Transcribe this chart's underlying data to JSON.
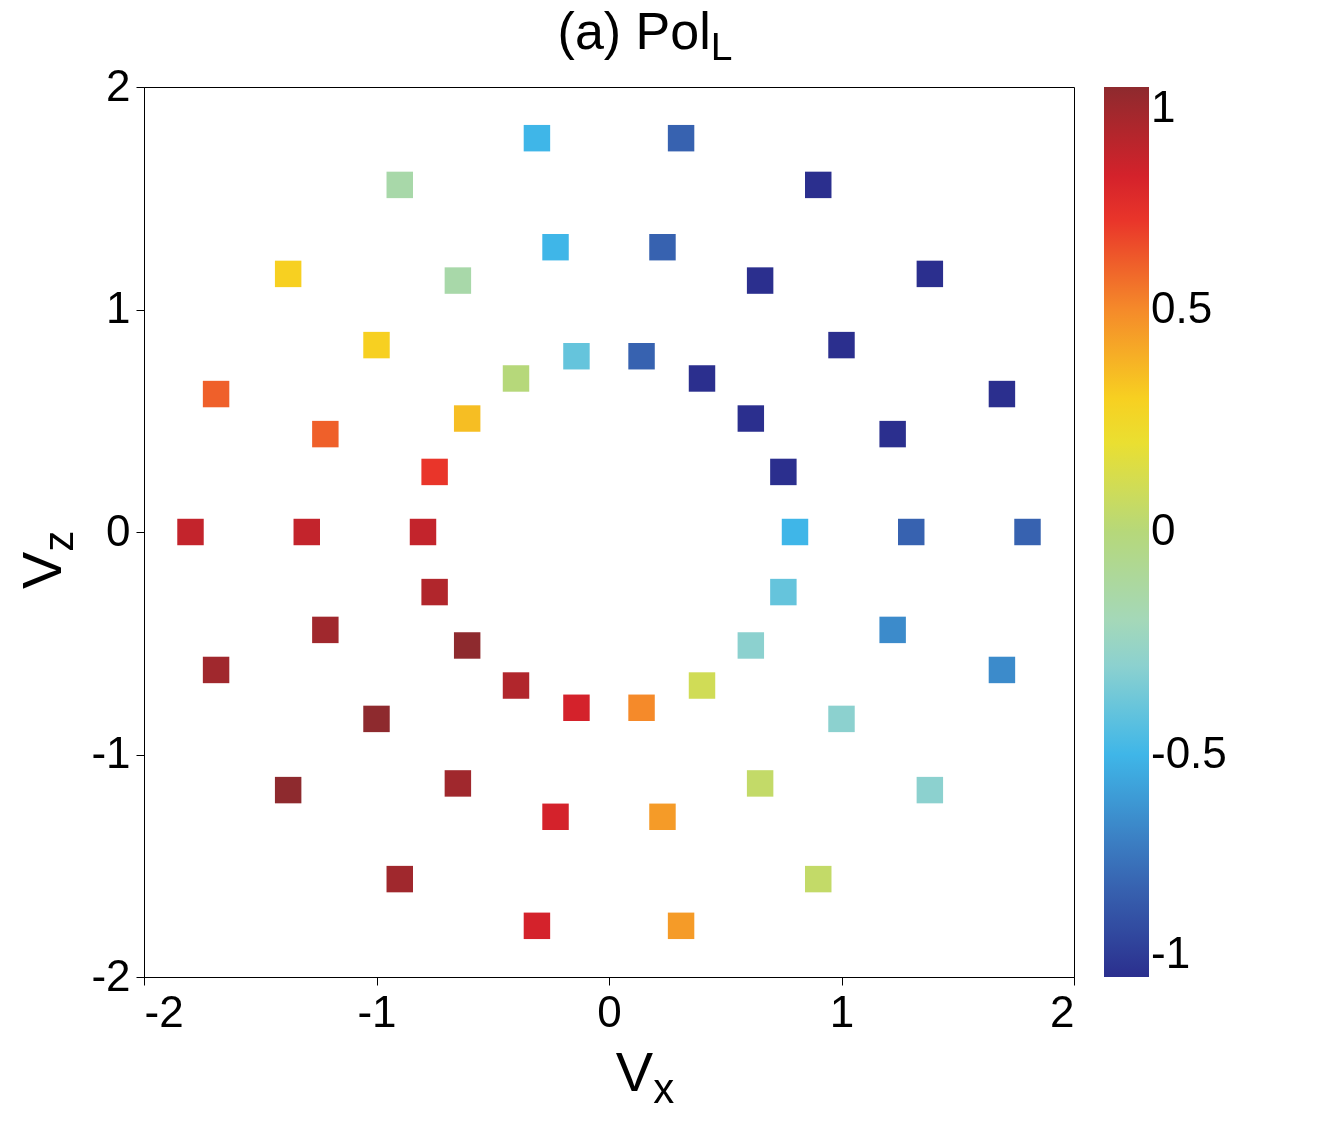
{
  "chart_data": {
    "type": "scatter",
    "title": "(a) Pol$_{L}$",
    "xlabel": "V$_{x}$",
    "ylabel": "V$_{z}$",
    "x": [
      0.8,
      0.75,
      0.61,
      0.4,
      0.14,
      -0.14,
      -0.4,
      -0.61,
      -0.75,
      -0.8,
      -0.75,
      -0.61,
      -0.4,
      -0.14,
      0.14,
      0.4,
      0.61,
      0.75,
      1.3,
      1.22,
      1.0,
      0.65,
      0.23,
      -0.23,
      -0.65,
      -1.0,
      -1.22,
      -1.3,
      -1.22,
      -1.0,
      -0.65,
      -0.23,
      0.23,
      0.65,
      1.0,
      1.22,
      1.8,
      1.69,
      1.38,
      0.9,
      0.31,
      -0.31,
      -0.9,
      -1.38,
      -1.69,
      -1.8,
      -1.69,
      -1.38,
      -0.9,
      -0.31,
      0.31,
      0.9,
      1.38,
      1.69
    ],
    "values": [
      0,
      0.27,
      0.51,
      0.69,
      0.79,
      0.79,
      0.69,
      0.51,
      0.27,
      0,
      -0.27,
      -0.51,
      -0.69,
      -0.79,
      -0.79,
      -0.69,
      -0.51,
      -0.27,
      0,
      0.44,
      0.84,
      1.13,
      1.28,
      1.28,
      1.13,
      0.84,
      0.44,
      0,
      -0.44,
      -0.84,
      -1.13,
      -1.28,
      -1.28,
      -1.13,
      -0.84,
      -0.44,
      0,
      0.62,
      1.16,
      1.56,
      1.77,
      1.77,
      1.56,
      1.16,
      0.62,
      0,
      -0.62,
      -1.16,
      -1.56,
      -1.77,
      -1.77,
      -1.56,
      -1.16,
      -0.62
    ],
    "cvalues": [
      -0.5,
      -1,
      -1,
      -1,
      -0.8,
      -0.4,
      0,
      0.35,
      0.7,
      0.85,
      0.9,
      1,
      0.9,
      0.8,
      0.5,
      0.1,
      -0.3,
      -0.4,
      -0.8,
      -1,
      -1,
      -1,
      -0.8,
      -0.5,
      -0.15,
      0.3,
      0.6,
      0.85,
      0.95,
      1,
      0.95,
      0.8,
      0.45,
      0.05,
      -0.3,
      -0.65,
      -0.8,
      -1,
      -1,
      -1,
      -0.8,
      -0.5,
      -0.15,
      0.3,
      0.6,
      0.85,
      0.95,
      1,
      0.95,
      0.8,
      0.45,
      0.05,
      -0.3,
      -0.65
    ],
    "clim": [
      -1,
      1
    ],
    "cticks": [
      -1,
      -0.5,
      0,
      0.5,
      1
    ],
    "xlim": [
      -2,
      2
    ],
    "ylim": [
      -2,
      2
    ],
    "xticks": [
      -2,
      -1,
      0,
      1,
      2
    ],
    "yticks": [
      -2,
      -1,
      0,
      1,
      2
    ],
    "marker": "square"
  }
}
